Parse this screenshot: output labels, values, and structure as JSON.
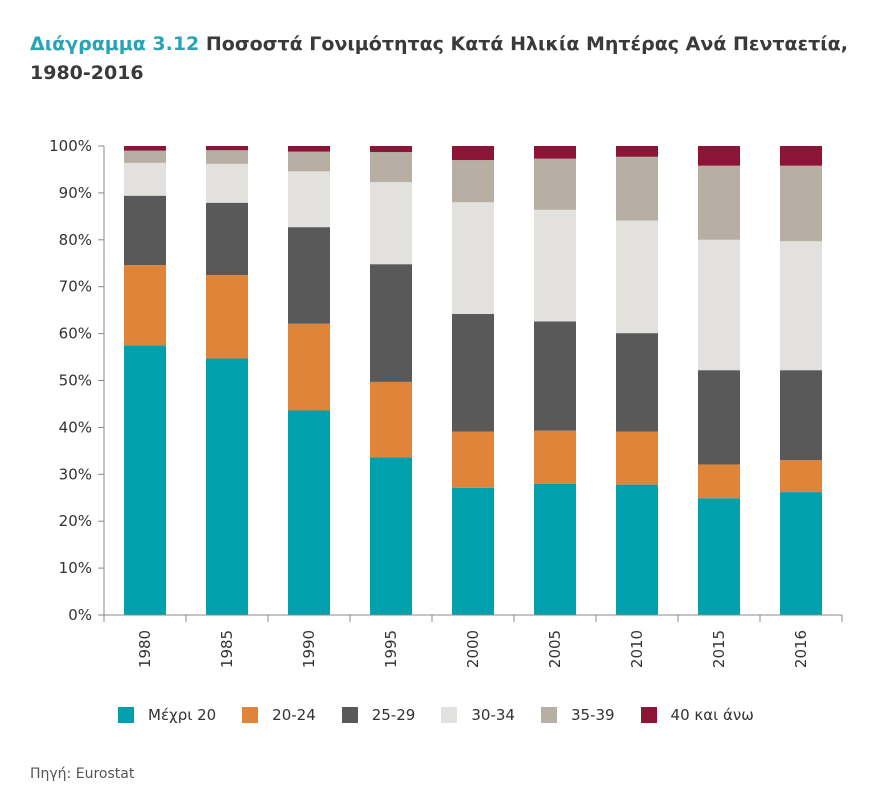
{
  "title": {
    "prefix": "Διάγραμμα 3.12",
    "text": "Ποσοστά Γονιμότητας Κατά Ηλικία Μητέρας Ανά Πενταετία, 1980-2016"
  },
  "source": "Πηγή: Eurostat",
  "chart_data": {
    "type": "bar",
    "stacked": true,
    "title": "Ποσοστά Γονιμότητας Κατά Ηλικία Μητέρας Ανά Πενταετία, 1980-2016",
    "xlabel": "",
    "ylabel": "",
    "ylim": [
      0,
      100
    ],
    "yticks": [
      "0%",
      "10%",
      "20%",
      "30%",
      "40%",
      "50%",
      "60%",
      "70%",
      "80%",
      "90%",
      "100%"
    ],
    "categories": [
      "1980",
      "1985",
      "1990",
      "1995",
      "2000",
      "2005",
      "2010",
      "2015",
      "2016"
    ],
    "legend_position": "bottom",
    "series": [
      {
        "name": "Μέχρι 20",
        "color": "#00a0ad",
        "values": [
          57.5,
          54.7,
          43.6,
          33.6,
          27.1,
          28.0,
          27.8,
          24.9,
          26.2
        ]
      },
      {
        "name": "20-24",
        "color": "#e0843a",
        "values": [
          17.1,
          17.8,
          18.5,
          16.1,
          12.0,
          11.3,
          11.3,
          7.2,
          6.8
        ]
      },
      {
        "name": "25-29",
        "color": "#595959",
        "values": [
          14.8,
          15.4,
          20.6,
          25.1,
          25.1,
          23.3,
          21.0,
          20.1,
          19.2
        ]
      },
      {
        "name": "30-34",
        "color": "#e3e1de",
        "values": [
          7.0,
          8.3,
          11.9,
          17.5,
          23.8,
          23.8,
          24.0,
          27.8,
          27.5
        ]
      },
      {
        "name": "35-39",
        "color": "#b7aea4",
        "values": [
          2.6,
          2.9,
          4.2,
          6.4,
          9.0,
          10.9,
          13.6,
          15.8,
          16.1
        ]
      },
      {
        "name": "40 και άνω",
        "color": "#8c1537",
        "values": [
          1.0,
          0.9,
          1.2,
          1.3,
          3.0,
          2.7,
          2.3,
          4.2,
          4.2
        ]
      }
    ]
  }
}
